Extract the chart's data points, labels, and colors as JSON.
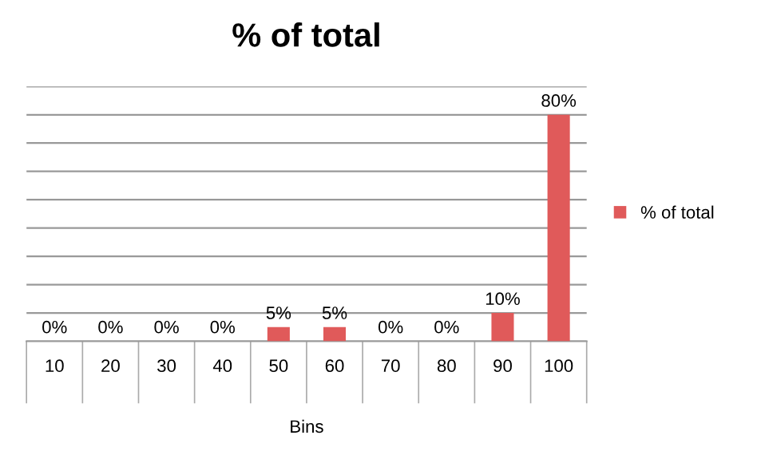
{
  "chart_data": {
    "type": "bar",
    "title": "% of total",
    "xlabel": "Bins",
    "categories": [
      "10",
      "20",
      "30",
      "40",
      "50",
      "60",
      "70",
      "80",
      "90",
      "100"
    ],
    "series": [
      {
        "name": "% of total",
        "color": "#e05a5a",
        "values": [
          0,
          0,
          0,
          0,
          5,
          5,
          0,
          0,
          10,
          80
        ],
        "value_labels": [
          "0%",
          "0%",
          "0%",
          "0%",
          "5%",
          "5%",
          "0%",
          "0%",
          "10%",
          "80%"
        ]
      }
    ],
    "ylim": [
      0,
      90
    ],
    "yticks": [
      {
        "value": 0,
        "label": null
      },
      {
        "value": 10,
        "label": null
      },
      {
        "value": 20,
        "label": null
      },
      {
        "value": 30,
        "label": null
      },
      {
        "value": 40,
        "label": null
      },
      {
        "value": 50,
        "label": null
      },
      {
        "value": 60,
        "label": null
      },
      {
        "value": 70,
        "label": null
      },
      {
        "value": 80,
        "label": null
      },
      {
        "value": 90,
        "label": null
      }
    ],
    "grid": "y",
    "legend": "right"
  }
}
